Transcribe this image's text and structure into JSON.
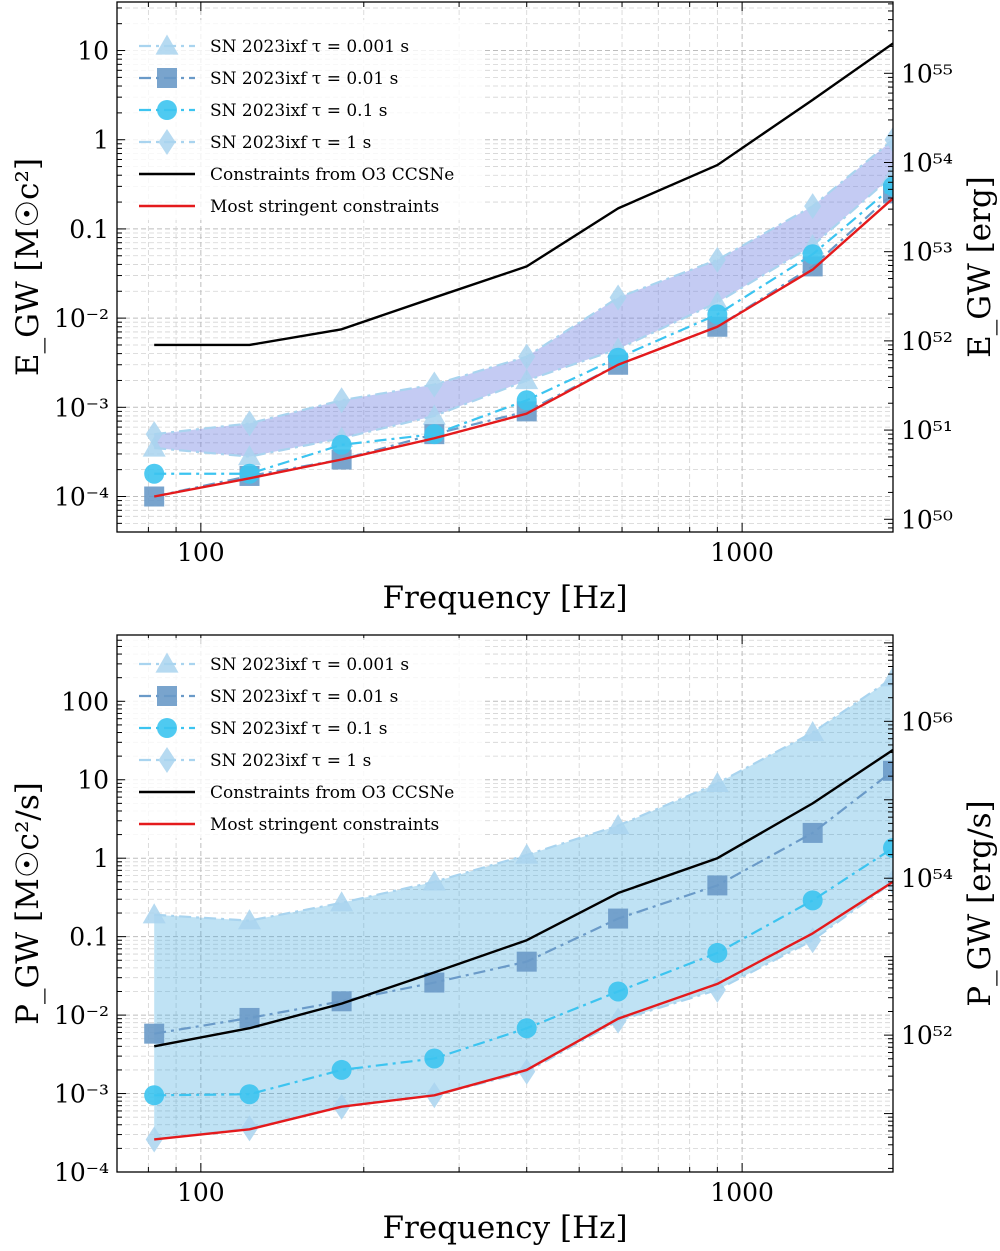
{
  "chart_data": [
    {
      "type": "line",
      "x_scale": "log",
      "y_scale": "log",
      "xlabel": "Frequency [Hz]",
      "ylabel": "E_GW [M☉c²]",
      "ylabel_right": "E_GW [erg]",
      "xlim": [
        70,
        1900
      ],
      "ylim": [
        4e-05,
        35
      ],
      "x_tick_values": [
        100,
        1000
      ],
      "x_tick_labels": [
        "100",
        "1000"
      ],
      "y_tick_values": [
        0.0001,
        0.001,
        0.01,
        0.1,
        1,
        10
      ],
      "y_tick_labels": [
        "10⁻⁴",
        "10⁻³",
        "10⁻²",
        "0.1",
        "1",
        "10"
      ],
      "right_tick_values_erg": [
        1e+50,
        1e+51,
        1e+52,
        1e+53,
        1e+54,
        1e+55
      ],
      "right_tick_labels": [
        "10⁵⁰",
        "10⁵¹",
        "10⁵²",
        "10⁵³",
        "10⁵⁴",
        "10⁵⁵"
      ],
      "erg_per_unit": 1.8e+54,
      "x": [
        82,
        123,
        182,
        270,
        400,
        590,
        900,
        1350,
        1900
      ],
      "series": [
        {
          "name": "SN 2023ixf τ = 0.001 s",
          "color": "#a9d4ef",
          "marker": "triangle",
          "style": "dashdot",
          "values": [
            0.00035,
            0.00028,
            0.00045,
            0.0008,
            0.002,
            0.0045,
            0.015,
            0.065,
            0.4
          ]
        },
        {
          "name": "SN 2023ixf τ = 0.01 s",
          "color": "#6a9ac8",
          "marker": "square",
          "style": "dashdot",
          "values": [
            0.0001,
            0.00017,
            0.00026,
            0.0005,
            0.0009,
            0.003,
            0.008,
            0.038,
            0.25
          ]
        },
        {
          "name": "SN 2023ixf τ = 0.1 s",
          "color": "#3cc4f0",
          "marker": "circle",
          "style": "dashdot",
          "values": [
            0.00018,
            0.00018,
            0.00038,
            0.0005,
            0.0012,
            0.0036,
            0.011,
            0.052,
            0.3
          ]
        },
        {
          "name": "SN 2023ixf τ = 1 s",
          "color": "#a9d4ef",
          "marker": "diamond",
          "style": "dashdot",
          "values": [
            0.0005,
            0.00066,
            0.0012,
            0.0018,
            0.0037,
            0.017,
            0.045,
            0.18,
            1.0
          ]
        },
        {
          "name": "Constraints from O3 CCSNe",
          "color": "#000000",
          "marker": "none",
          "style": "solid",
          "values": [
            0.005,
            0.005,
            0.0075,
            0.017,
            0.038,
            0.17,
            0.52,
            2.8,
            12
          ]
        },
        {
          "name": "Most stringent constraints",
          "color": "#e41a1c",
          "marker": "none",
          "style": "solid",
          "values": [
            0.0001,
            0.00016,
            0.00026,
            0.00045,
            0.00085,
            0.003,
            0.008,
            0.035,
            0.22
          ]
        }
      ],
      "band": {
        "lower_series": 0,
        "upper_series": 3,
        "color": "#6b7de0",
        "opacity": 0.4
      }
    },
    {
      "type": "line",
      "x_scale": "log",
      "y_scale": "log",
      "xlabel": "Frequency [Hz]",
      "ylabel": "P_GW [M☉c²/s]",
      "ylabel_right": "P_GW [erg/s]",
      "xlim": [
        70,
        1900
      ],
      "ylim": [
        0.0001,
        700
      ],
      "x_tick_values": [
        100,
        1000
      ],
      "x_tick_labels": [
        "100",
        "1000"
      ],
      "y_tick_values": [
        0.0001,
        0.001,
        0.01,
        0.1,
        1,
        10,
        100
      ],
      "y_tick_labels": [
        "10⁻⁴",
        "10⁻³",
        "10⁻²",
        "0.1",
        "1",
        "10",
        "100"
      ],
      "right_tick_values_erg": [
        1e+52,
        1e+54,
        1e+56
      ],
      "right_tick_labels": [
        "10⁵²",
        "10⁵⁴",
        "10⁵⁶"
      ],
      "erg_per_unit": 1.8e+54,
      "x": [
        82,
        123,
        182,
        270,
        400,
        590,
        900,
        1350,
        1900
      ],
      "series": [
        {
          "name": "SN 2023ixf τ = 0.001 s",
          "color": "#a9d4ef",
          "marker": "triangle",
          "style": "dashdot",
          "values": [
            0.19,
            0.16,
            0.27,
            0.5,
            1.1,
            2.6,
            9,
            40,
            200
          ]
        },
        {
          "name": "SN 2023ixf τ = 0.01 s",
          "color": "#6a9ac8",
          "marker": "square",
          "style": "dashdot",
          "values": [
            0.0058,
            0.0092,
            0.015,
            0.026,
            0.048,
            0.17,
            0.45,
            2.1,
            13
          ]
        },
        {
          "name": "SN 2023ixf τ = 0.1 s",
          "color": "#3cc4f0",
          "marker": "circle",
          "style": "dashdot",
          "values": [
            0.00095,
            0.00098,
            0.002,
            0.0028,
            0.0068,
            0.02,
            0.062,
            0.29,
            1.35
          ]
        },
        {
          "name": "SN 2023ixf τ = 1 s",
          "color": "#a9d4ef",
          "marker": "diamond",
          "style": "dashdot",
          "values": [
            0.00026,
            0.00036,
            0.00068,
            0.00095,
            0.0019,
            0.0085,
            0.021,
            0.09,
            0.5
          ]
        },
        {
          "name": "Constraints from O3 CCSNe",
          "color": "#000000",
          "marker": "none",
          "style": "solid",
          "values": [
            0.004,
            0.0068,
            0.014,
            0.035,
            0.09,
            0.36,
            1.0,
            5,
            24
          ]
        },
        {
          "name": "Most stringent constraints",
          "color": "#e41a1c",
          "marker": "none",
          "style": "solid",
          "values": [
            0.00026,
            0.00035,
            0.00068,
            0.00095,
            0.002,
            0.009,
            0.025,
            0.11,
            0.5
          ]
        }
      ],
      "band": {
        "lower_series": 3,
        "upper_series": 0,
        "color": "#3ea8de",
        "opacity": 0.33
      }
    }
  ]
}
